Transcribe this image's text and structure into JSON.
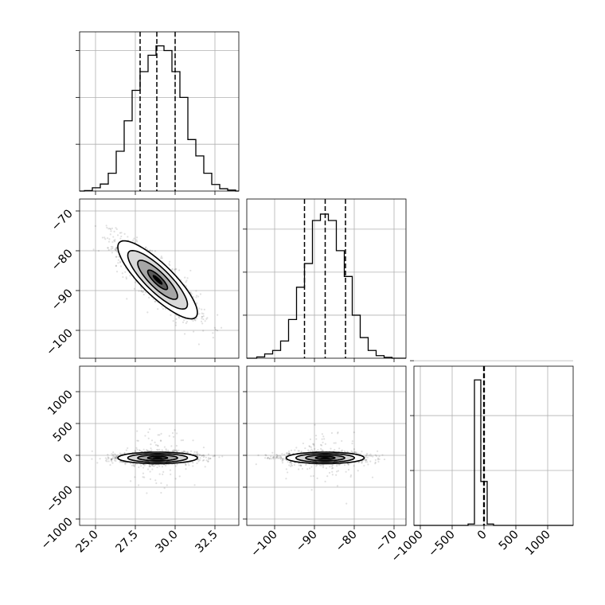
{
  "chart_data": {
    "type": "corner",
    "params": [
      {
        "range": [
          24,
          34
        ],
        "ticks": [
          25.0,
          27.5,
          30.0,
          32.5
        ],
        "tick_labels": [
          "25.0",
          "27.5",
          "30.0",
          "32.5"
        ]
      },
      {
        "range": [
          -107,
          -67
        ],
        "ticks": [
          -100,
          -90,
          -80,
          -70
        ],
        "tick_labels": [
          "−100",
          "−90",
          "−80",
          "−70"
        ]
      },
      {
        "range": [
          -1100,
          1400
        ],
        "ticks": [
          -1000,
          -500,
          0,
          500,
          1000
        ],
        "tick_labels": [
          "−1000",
          "−500",
          "0",
          "500",
          "1000"
        ]
      }
    ],
    "histograms": [
      {
        "param": 0,
        "bins": [
          24.3,
          24.8,
          25.3,
          25.8,
          26.3,
          26.8,
          27.3,
          27.8,
          28.3,
          28.8,
          29.3,
          29.8,
          30.3,
          30.8,
          31.3,
          31.8,
          32.3,
          32.8,
          33.3,
          33.8
        ],
        "counts": [
          1,
          7,
          15,
          38,
          85,
          150,
          215,
          255,
          290,
          310,
          300,
          255,
          200,
          110,
          75,
          38,
          14,
          5,
          2
        ],
        "ymax": 340,
        "quantiles": [
          27.8,
          28.85,
          30.0
        ],
        "y_ticks": [
          100,
          200,
          300
        ]
      },
      {
        "param": 1,
        "bins": [
          -104.5,
          -102.5,
          -100.5,
          -98.5,
          -96.5,
          -94.5,
          -92.5,
          -90.5,
          -88.5,
          -86.5,
          -84.5,
          -82.5,
          -80.5,
          -78.5,
          -76.5,
          -74.5,
          -72.5,
          -70.5
        ],
        "counts": [
          3,
          10,
          18,
          40,
          90,
          165,
          220,
          320,
          335,
          320,
          250,
          190,
          100,
          48,
          18,
          6,
          2
        ],
        "ymax": 370,
        "quantiles": [
          -92.5,
          -87.3,
          -82.2
        ],
        "y_ticks": [
          100,
          200,
          300
        ]
      },
      {
        "param": 2,
        "bins": [
          -250,
          -150,
          -50,
          50,
          150
        ],
        "counts": [
          5,
          530,
          160,
          5
        ],
        "ymax": 580,
        "quantiles": [
          -5,
          0,
          5
        ],
        "y_ticks": [
          200,
          400,
          600
        ]
      }
    ],
    "scatter_panels": [
      {
        "x_param": 0,
        "y_param": 1,
        "center": [
          28.9,
          -87.3
        ],
        "sd": [
          1.25,
          4.9
        ],
        "rho": -0.84,
        "contour_sigma": [
          0.5,
          1.0,
          1.5,
          2.0
        ],
        "density_levels": 6
      },
      {
        "x_param": 0,
        "y_param": 2,
        "center": [
          28.9,
          -40
        ],
        "sd": [
          1.25,
          45
        ],
        "rho": 0,
        "contour_sigma": [
          0.5,
          1.0,
          1.5,
          2.0
        ],
        "tail_sigma_y": 230,
        "density_levels": 4
      },
      {
        "x_param": 1,
        "y_param": 2,
        "center": [
          -87.3,
          -40
        ],
        "sd": [
          4.9,
          45
        ],
        "rho": 0,
        "contour_sigma": [
          0.5,
          1.0,
          1.5,
          2.0
        ],
        "tail_sigma_y": 230,
        "density_levels": 4
      }
    ],
    "grid": true
  }
}
